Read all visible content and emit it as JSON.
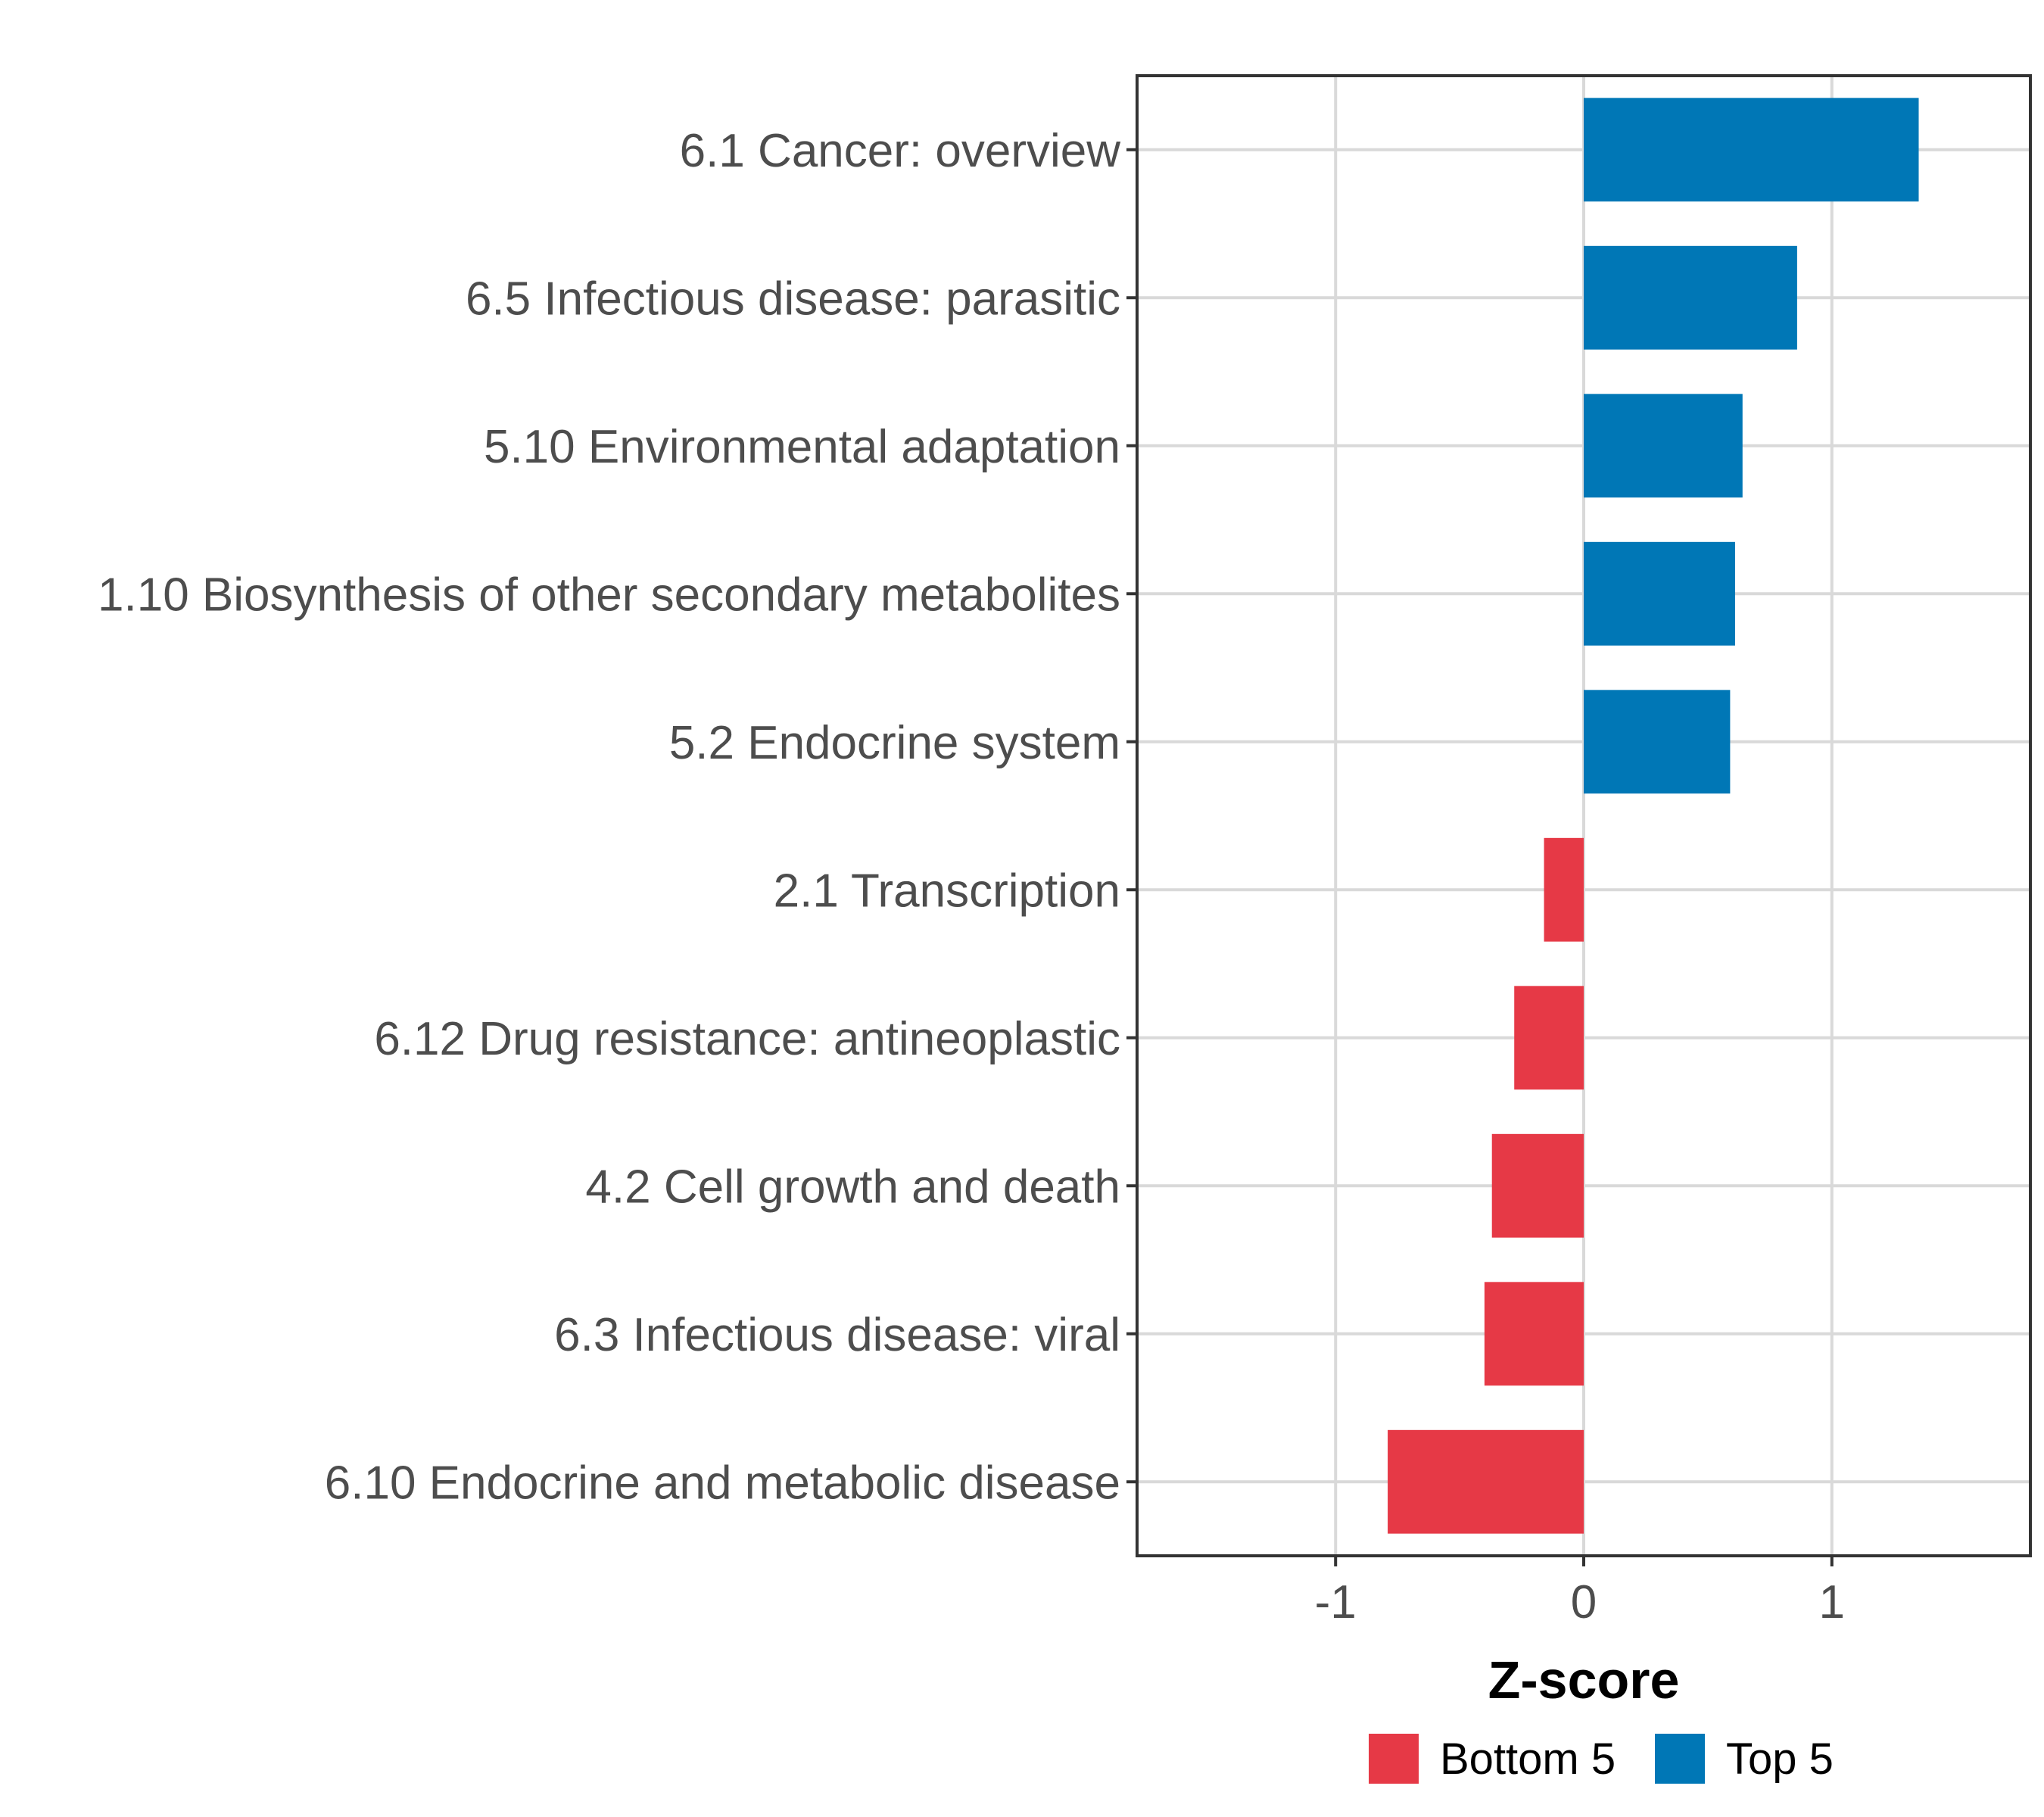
{
  "chart_data": {
    "type": "bar",
    "orientation": "horizontal",
    "title": "",
    "xlabel": "Z-score",
    "ylabel": "",
    "xlim": [
      -1.8,
      1.8
    ],
    "xticks": [
      -1,
      0,
      1
    ],
    "xtick_labels": [
      "-1",
      "0",
      "1"
    ],
    "grid": true,
    "legend_position": "bottom",
    "categories": [
      "6.1 Cancer: overview",
      "6.5 Infectious disease: parasitic",
      "5.10 Environmental adaptation",
      "1.10 Biosynthesis of other secondary metabolites",
      "5.2 Endocrine system",
      "2.1 Transcription",
      "6.12 Drug resistance: antineoplastic",
      "4.2 Cell growth and death",
      "6.3 Infectious disease: viral",
      "6.10 Endocrine and metabolic disease"
    ],
    "values": [
      1.35,
      0.86,
      0.64,
      0.61,
      0.59,
      -0.16,
      -0.28,
      -0.37,
      -0.4,
      -0.79
    ],
    "groups": [
      "Top 5",
      "Top 5",
      "Top 5",
      "Top 5",
      "Top 5",
      "Bottom 5",
      "Bottom 5",
      "Bottom 5",
      "Bottom 5",
      "Bottom 5"
    ],
    "legend": [
      {
        "name": "Bottom 5",
        "color": "#e63946"
      },
      {
        "name": "Top 5",
        "color": "#0077b6"
      }
    ]
  }
}
